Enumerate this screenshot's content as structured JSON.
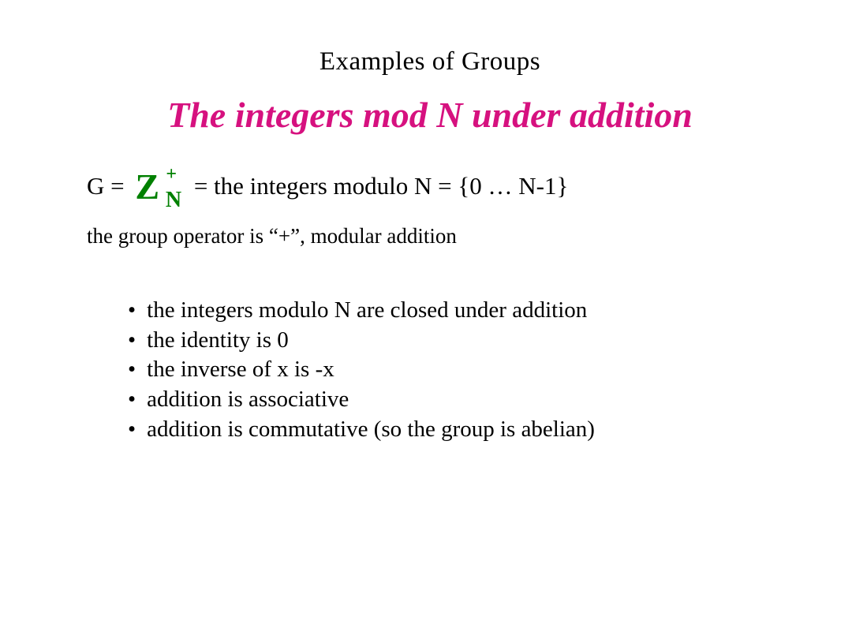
{
  "header": {
    "pretitle": "Examples of Groups",
    "title": "The integers mod N under addition"
  },
  "definition": {
    "lhs": "G =",
    "symbol": {
      "base": "Z",
      "sup": "+",
      "sub": "N",
      "color": "#008000"
    },
    "rhs": "= the integers modulo N = {0 … N-1}"
  },
  "operator_line": "the group operator is “+”, modular addition",
  "bullets": [
    "the integers modulo N are closed under addition",
    "the identity is 0",
    "the inverse of x is -x",
    "addition is associative",
    "addition is commutative (so the group is abelian)"
  ],
  "colors": {
    "text": "#000000",
    "title": "#d6117f",
    "symbol": "#008000",
    "background": "#ffffff"
  },
  "fonts": {
    "family": "Times New Roman",
    "pretitle_size": 33,
    "title_size": 46,
    "body_size": 31,
    "small_size": 27,
    "bullet_size": 29
  }
}
